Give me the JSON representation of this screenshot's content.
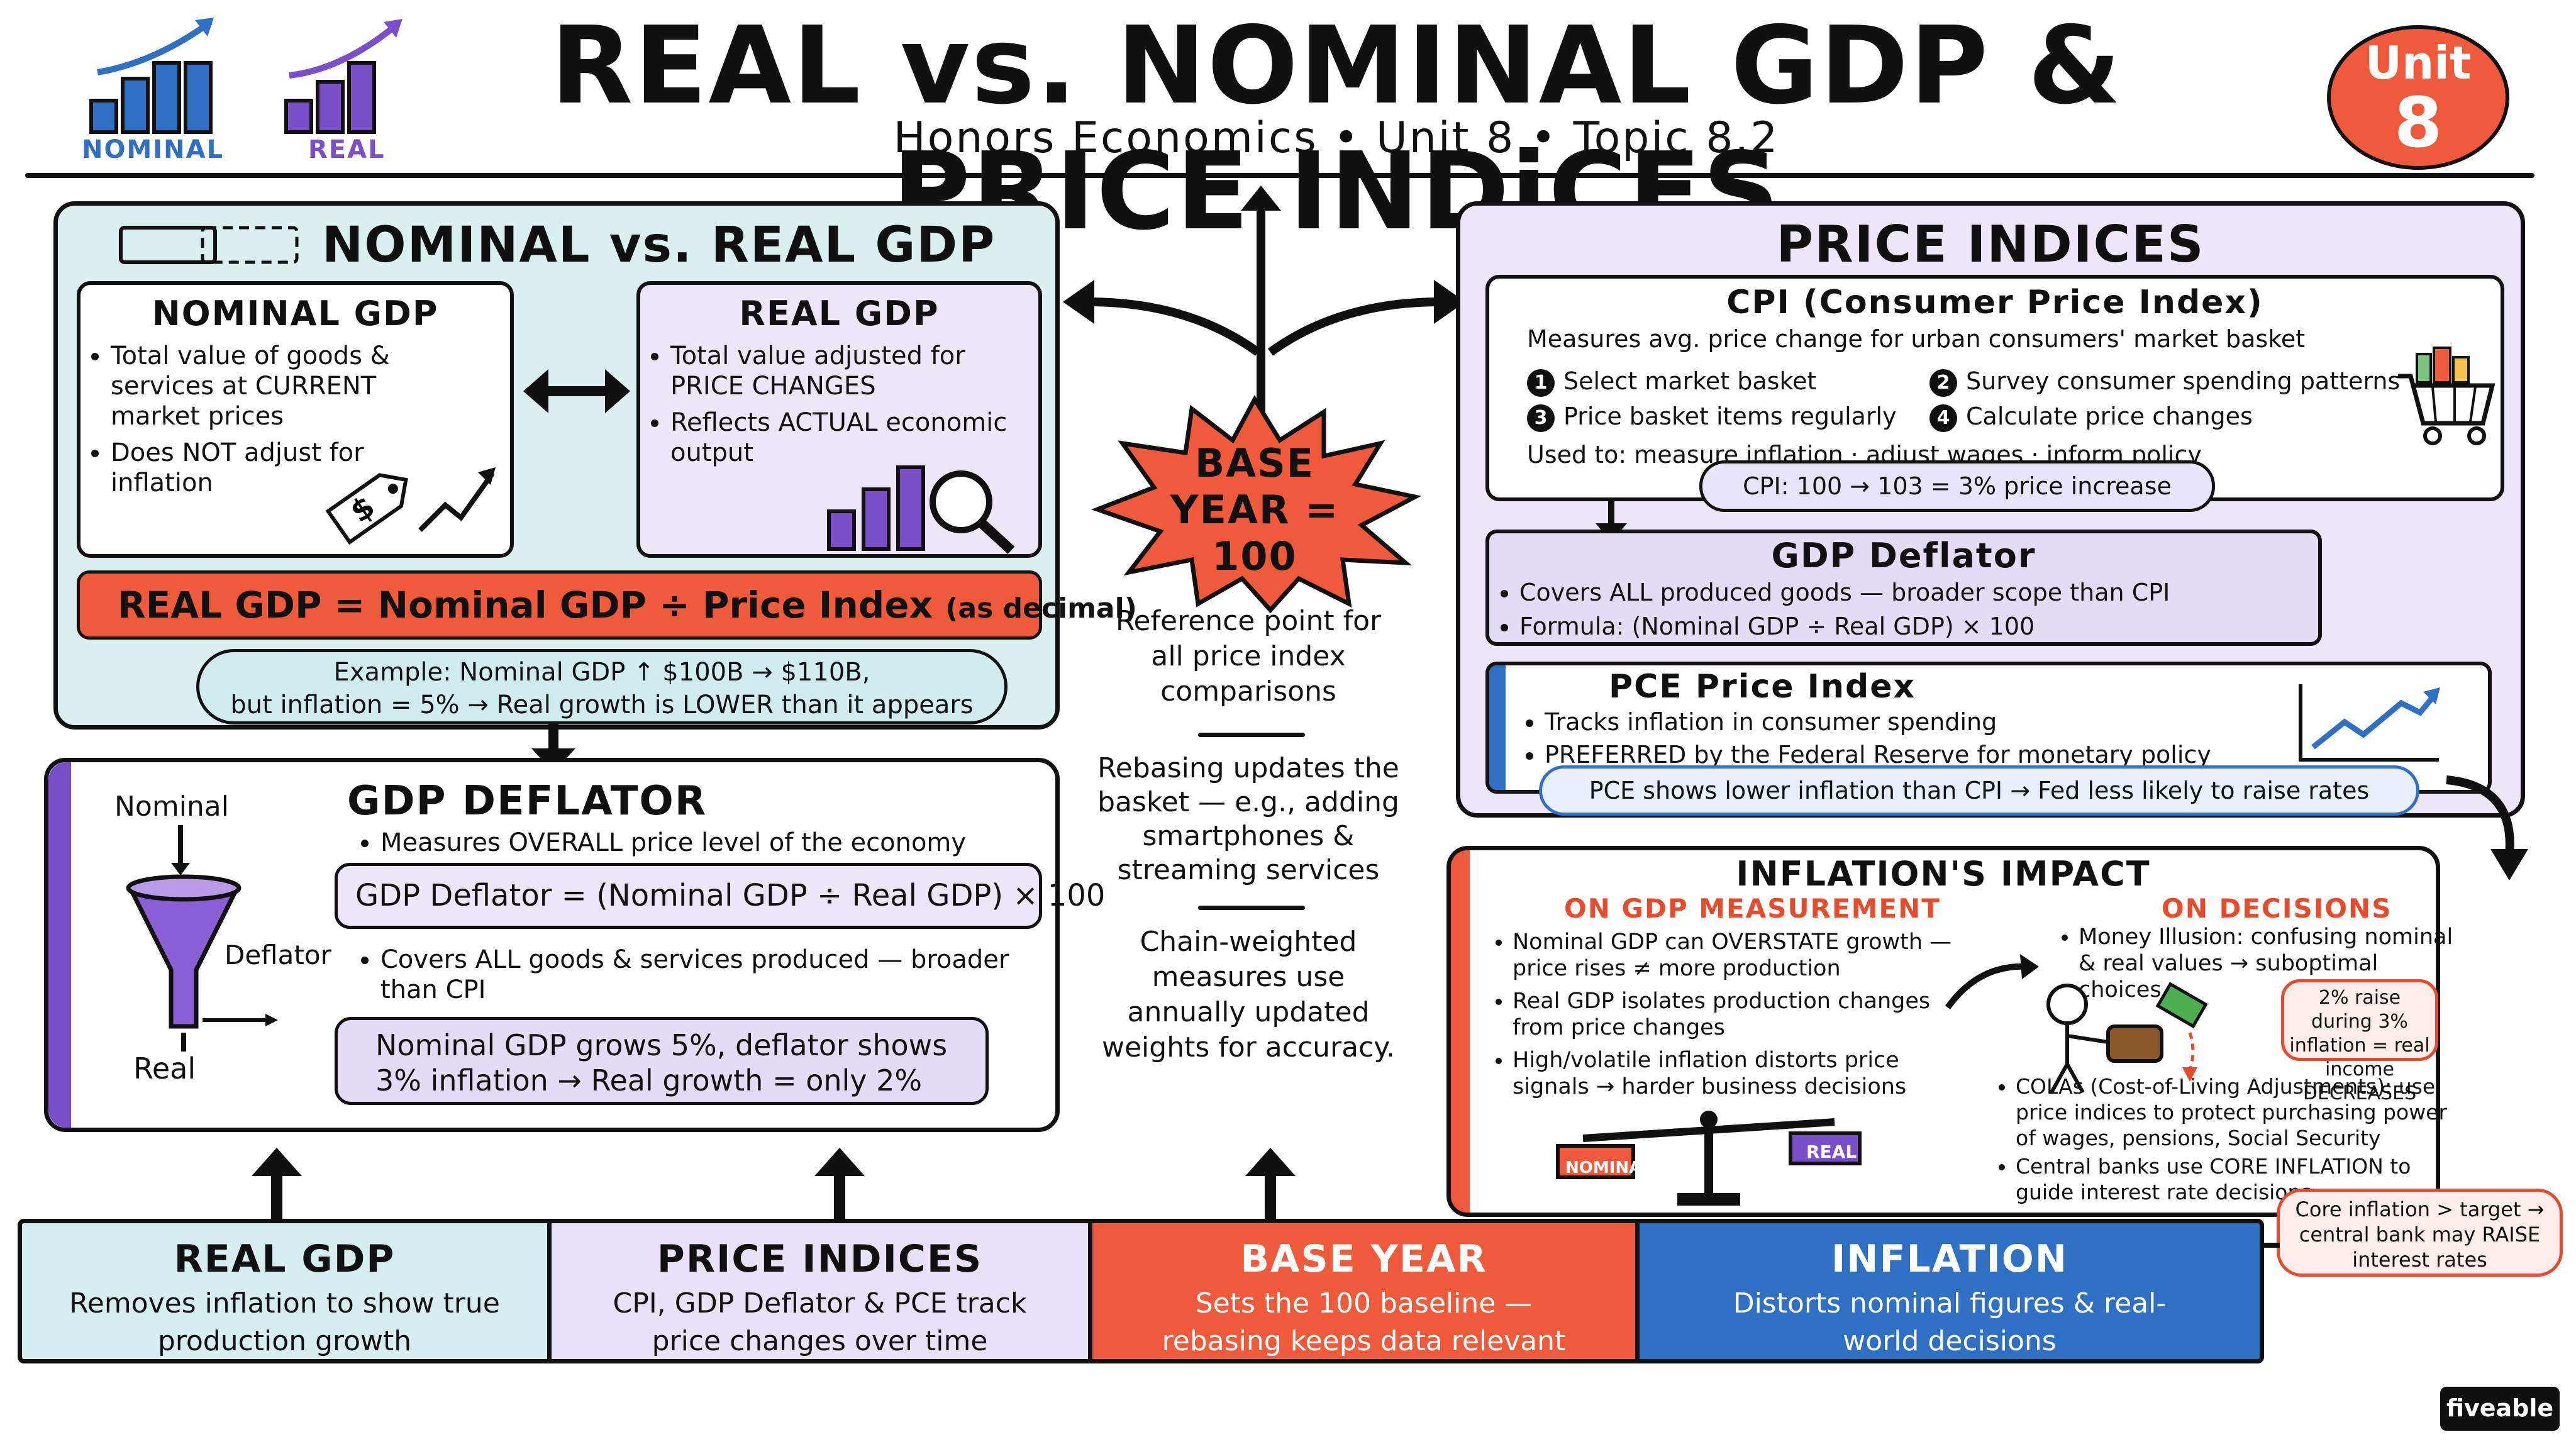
{
  "header": {
    "title": "REAL vs. NOMINAL GDP & PRICE INDiCES",
    "subtitle": "Honors Economics • Unit 8 • Topic 8.2",
    "icon_nominal_label": "NOMINAL",
    "icon_real_label": "REAL",
    "unit_badge_top": "Unit",
    "unit_badge_num": "8"
  },
  "nominal_real": {
    "title": "NOMINAL vs. REAL GDP",
    "nominal": {
      "title": "NOMINAL GDP",
      "bullets": [
        "Total value of goods & services at CURRENT market prices",
        "Does NOT adjust for inflation"
      ]
    },
    "real": {
      "title": "REAL GDP",
      "bullets": [
        "Total value adjusted for PRICE CHANGES",
        "Reflects ACTUAL economic output"
      ]
    },
    "formula": "REAL GDP = Nominal GDP ÷ Price Index",
    "formula_note": "(as decimal)",
    "example_line1": "Example: Nominal GDP ↑ $100B → $110B,",
    "example_line2": "but inflation = 5% → Real growth is LOWER than it appears"
  },
  "deflator": {
    "title": "GDP DEFLATOR",
    "funnel_top": "Nominal",
    "funnel_side": "Deflator",
    "funnel_bottom": "Real",
    "bullet1": "Measures OVERALL price level of the economy",
    "formula": "GDP Deflator = (Nominal GDP ÷ Real GDP) × 100",
    "bullet2": "Covers ALL goods & services produced — broader than CPI",
    "example_line1": "Nominal GDP grows 5%, deflator shows",
    "example_line2": "3% inflation → Real growth = only 2%"
  },
  "base_year": {
    "burst_line1": "BASE",
    "burst_line2": "YEAR = 100",
    "text1": "Reference point for all price index comparisons",
    "text2": "Rebasing updates the basket — e.g., adding smartphones & streaming services",
    "text3": "Chain-weighted measures use annually updated weights for accuracy."
  },
  "price_indices": {
    "title": "PRICE INDICES",
    "cpi": {
      "title": "CPI (Consumer Price Index)",
      "desc": "Measures avg. price change for urban consumers' market basket",
      "steps": [
        "Select market basket",
        "Survey consumer spending patterns",
        "Price basket items regularly",
        "Calculate price changes"
      ],
      "step_nums": [
        "1",
        "2",
        "3",
        "4"
      ],
      "used_label": "Used to:",
      "used_text": "measure inflation · adjust wages · inform policy",
      "example": "CPI: 100 → 103 = 3% price increase"
    },
    "gdp_deflator": {
      "title": "GDP Deflator",
      "bullets": [
        "Covers ALL produced goods — broader scope than CPI",
        "Formula: (Nominal GDP ÷ Real GDP) × 100"
      ]
    },
    "pce": {
      "title": "PCE Price Index",
      "bullets": [
        "Tracks inflation in consumer spending",
        "PREFERRED by the Federal Reserve for monetary policy"
      ],
      "note": "PCE shows lower inflation than CPI → Fed less likely to raise rates"
    }
  },
  "impact": {
    "title": "INFLATION'S IMPACT",
    "gdp_heading": "ON GDP MEASUREMENT",
    "gdp_bullets": [
      "Nominal GDP can OVERSTATE growth — price rises ≠ more production",
      "Real GDP isolates production changes from price changes",
      "High/volatile inflation distorts price signals → harder business decisions"
    ],
    "scale_left": "NOMINAL",
    "scale_right": "REAL",
    "decisions_heading": "ON DECISIONS",
    "decisions_bullet1": "Money Illusion: confusing nominal & real values → suboptimal choices",
    "raise_note": "2% raise during 3% inflation = real income DECREASES",
    "decisions_bullets2": [
      "COLAs (Cost-of-Living Adjustments): use price indices to protect purchasing power of wages, pensions, Social Security",
      "Central banks use CORE INFLATION to guide interest rate decisions"
    ],
    "core_note": "Core inflation > target → central bank may RAISE interest rates"
  },
  "bottom": [
    {
      "title": "REAL GDP",
      "text": "Removes inflation to show true production growth",
      "color": "#d6efee"
    },
    {
      "title": "PRICE INDICES",
      "text": "CPI, GDP Deflator & PCE track price changes over time",
      "color": "#e9e1f8"
    },
    {
      "title": "BASE YEAR",
      "text": "Sets the 100 baseline — rebasing keeps data relevant",
      "color": "#ee5a3a"
    },
    {
      "title": "INFLATION",
      "text": "Distorts nominal figures & real-world decisions",
      "color": "#2f6fc4"
    }
  ],
  "brand": "fiveable",
  "colors": {
    "teal_bg": "#daf0ee",
    "purple_bg": "#ece6f8",
    "purple": "#7b4fc9",
    "orange": "#ee5a3a",
    "blue": "#2f6fc4",
    "red_text": "#e84b2c"
  }
}
